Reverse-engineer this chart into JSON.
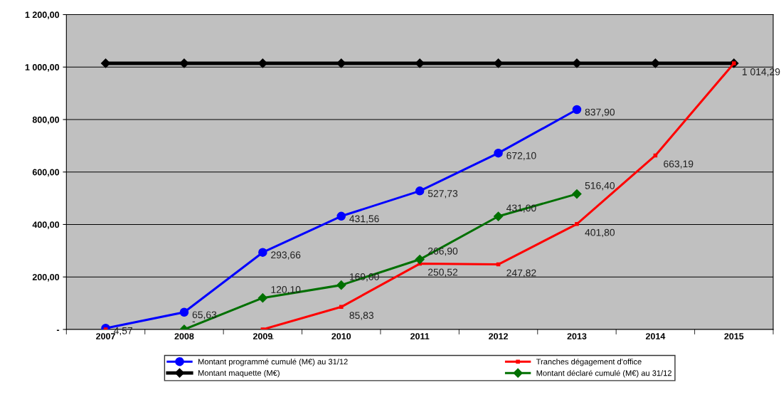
{
  "chart_data": {
    "type": "line",
    "categories": [
      "2007",
      "2008",
      "2009",
      "2010",
      "2011",
      "2012",
      "2013",
      "2014",
      "2015"
    ],
    "ylim": [
      0,
      1200
    ],
    "yticks": [
      {
        "value": 0,
        "label": "-"
      },
      {
        "value": 200,
        "label": "200,00"
      },
      {
        "value": 400,
        "label": "400,00"
      },
      {
        "value": 600,
        "label": "600,00"
      },
      {
        "value": 800,
        "label": "800,00"
      },
      {
        "value": 1000,
        "label": "1 000,00"
      },
      {
        "value": 1200,
        "label": "1 200,00"
      }
    ],
    "grid": "y",
    "legend": "bottom",
    "series": [
      {
        "name": "Montant programmé cumulé (M€) au 31/12",
        "color": "#0000ff",
        "marker": "circle",
        "values": [
          4.57,
          65.63,
          293.66,
          431.56,
          527.73,
          672.1,
          837.9,
          null,
          null
        ],
        "value_labels": [
          "4,57",
          "65,63",
          "293,66",
          "431,56",
          "527,73",
          "672,10",
          "837,90",
          null,
          null
        ]
      },
      {
        "name": "Montant maquette (M€)",
        "color": "#000000",
        "marker": "diamond",
        "values": [
          1014.29,
          1014.29,
          1014.29,
          1014.29,
          1014.29,
          1014.29,
          1014.29,
          1014.29,
          1014.29
        ]
      },
      {
        "name": "Tranches dégagement d'office",
        "color": "#ff0000",
        "marker": "square",
        "values": [
          0,
          null,
          0,
          85.83,
          250.52,
          247.82,
          401.8,
          663.19,
          1014.29
        ],
        "value_labels": [
          null,
          null,
          "-",
          "85,83",
          "250,52",
          "247,82",
          "401,80",
          "663,19",
          "1 014,29"
        ]
      },
      {
        "name": "Montant déclaré cumulé (M€) au 31/12",
        "color": "#007000",
        "marker": "diamond",
        "values": [
          null,
          0,
          120.1,
          169.0,
          266.9,
          431.0,
          516.4,
          null,
          null
        ],
        "value_labels": [
          null,
          "-",
          "120,10",
          "169,00",
          "266,90",
          "431,00",
          "516,40",
          null,
          null
        ]
      }
    ]
  }
}
